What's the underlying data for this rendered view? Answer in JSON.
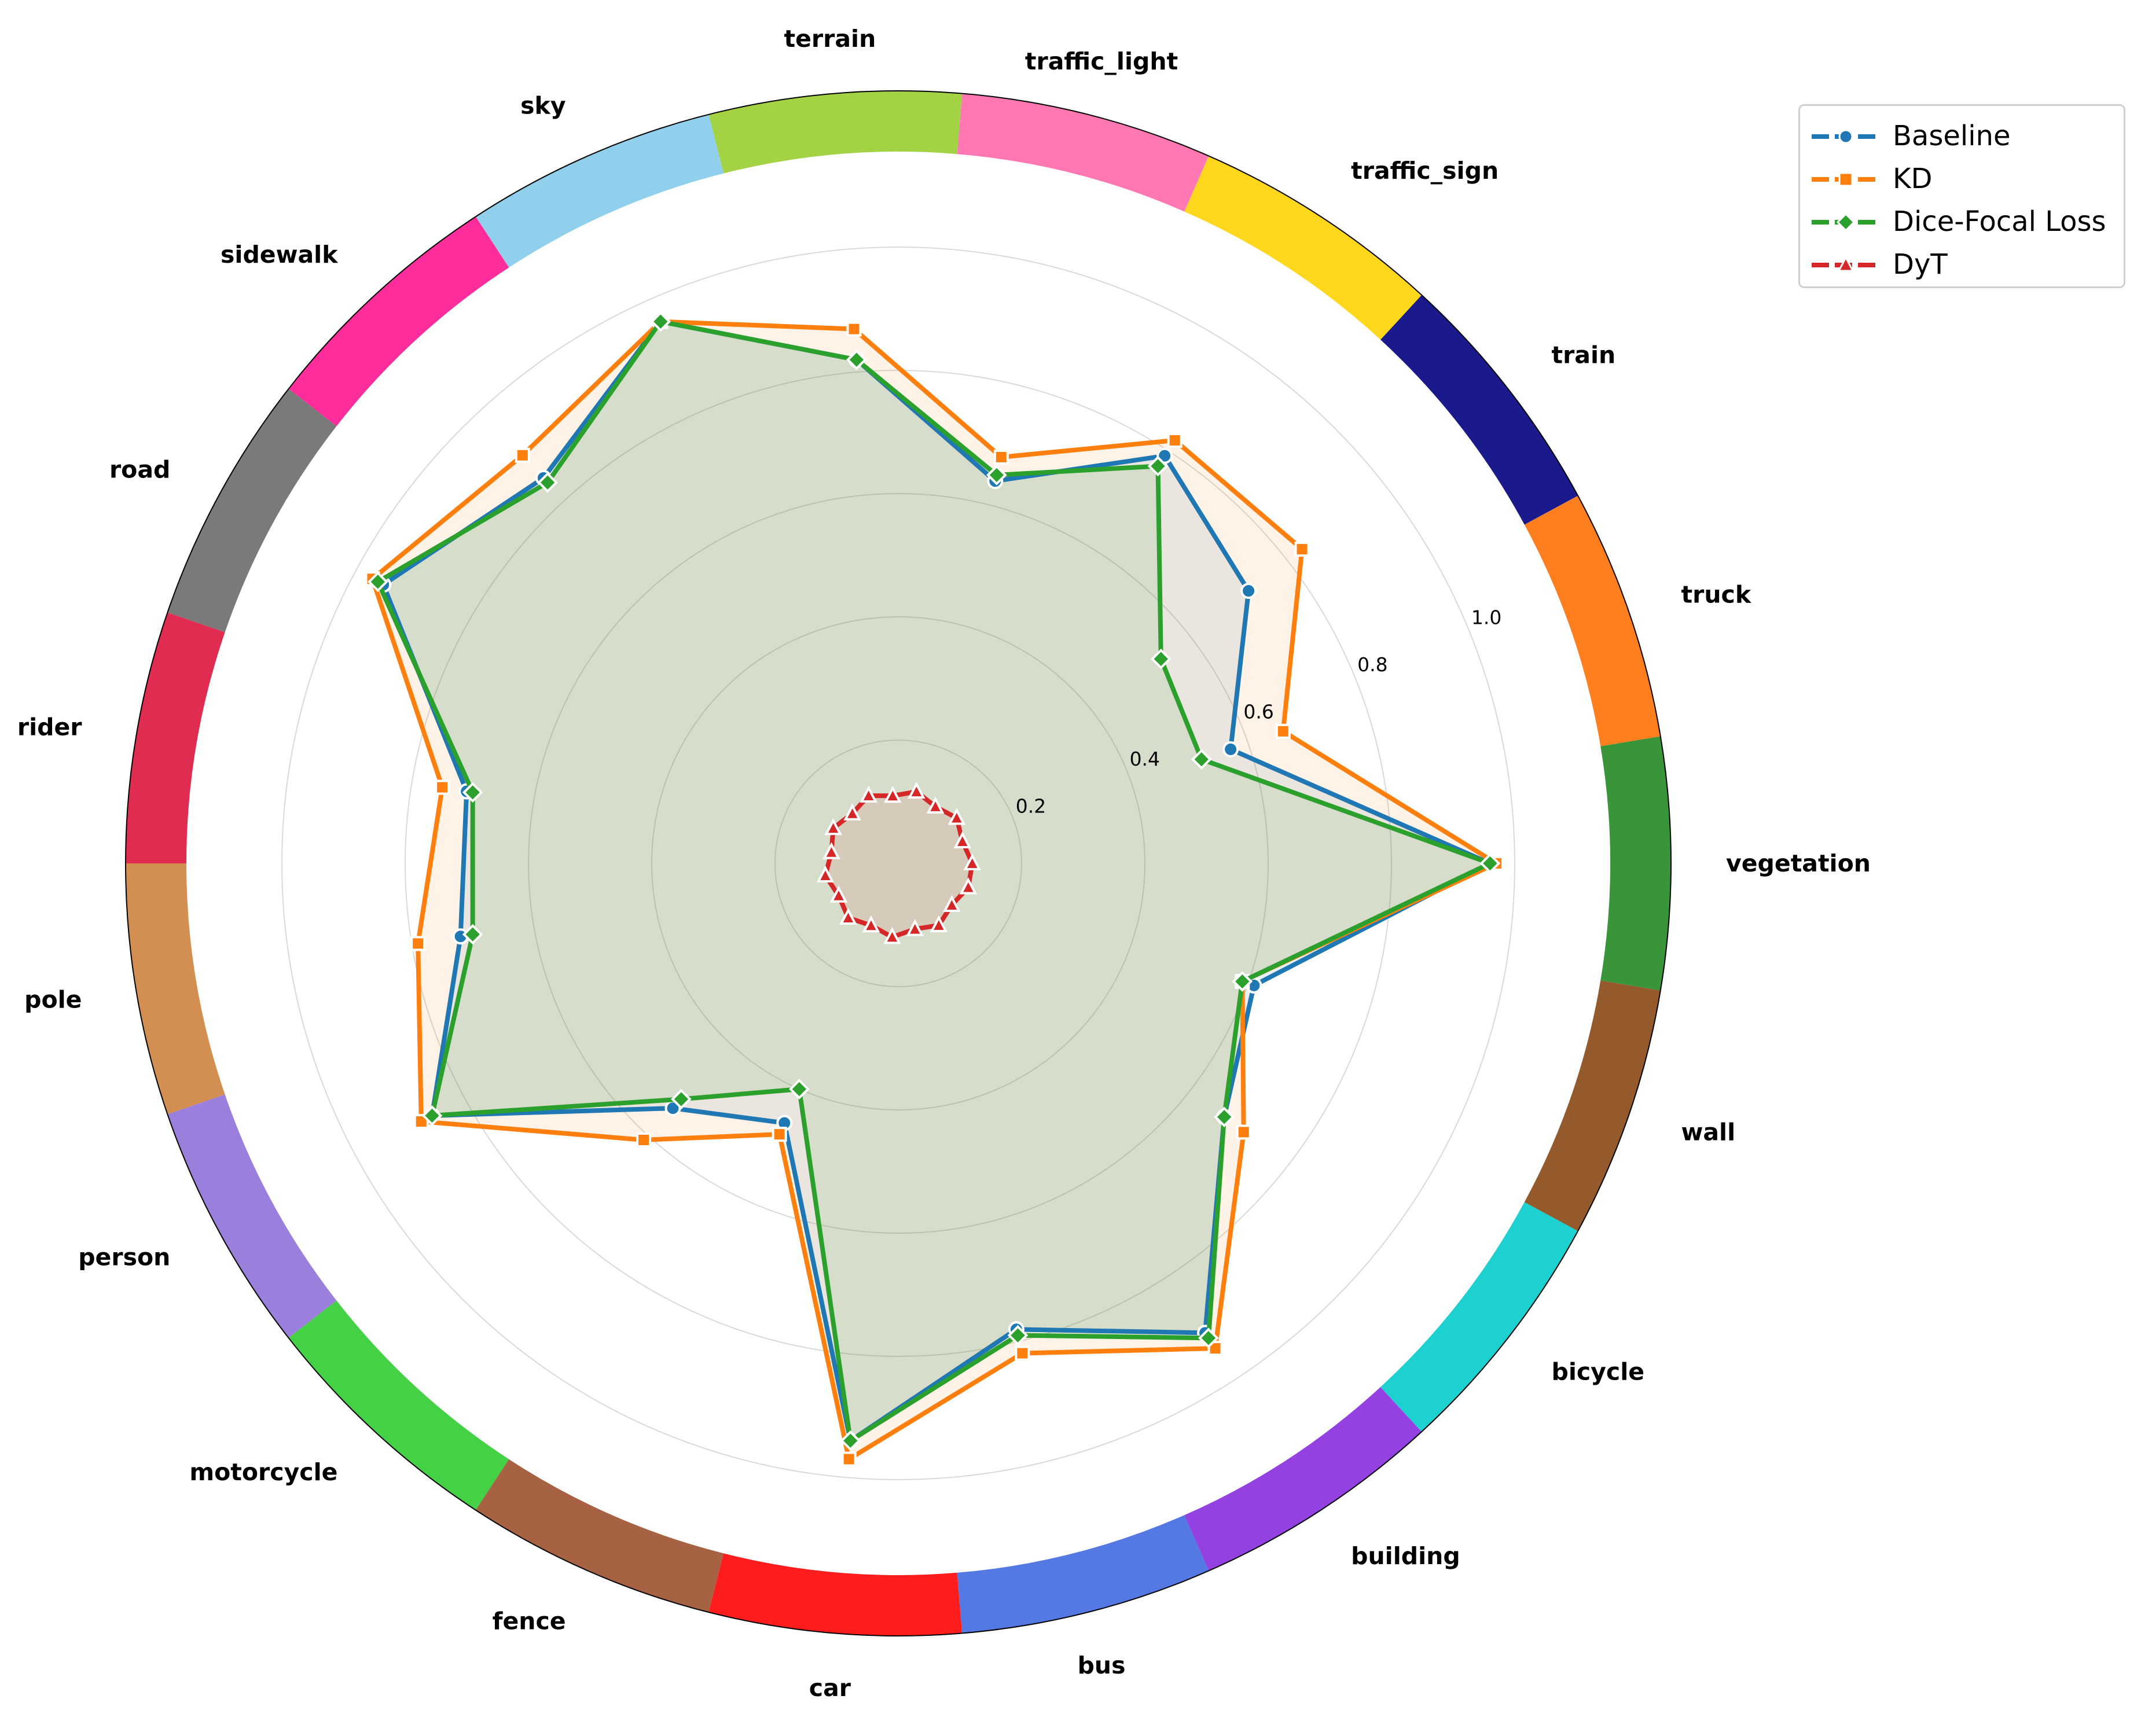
{
  "chart_data": {
    "type": "radar",
    "categories": [
      "vegetation",
      "truck",
      "train",
      "traffic_sign",
      "traffic_light",
      "terrain",
      "sky",
      "sidewalk",
      "road",
      "rider",
      "pole",
      "person",
      "motorcycle",
      "fence",
      "car",
      "bus",
      "building",
      "bicycle",
      "wall"
    ],
    "ring_colors": [
      "#3a953a",
      "#ff7f1e",
      "#1a1a8c",
      "#ffd81e",
      "#ff78b4",
      "#a4d245",
      "#90d0ec",
      "#ff2d9c",
      "#7a7a7a",
      "#e02c50",
      "#d38f52",
      "#9b7fdc",
      "#45d145",
      "#a76243",
      "#ff1c1c",
      "#5479e2",
      "#9441e2",
      "#1dd1d1",
      "#945a2c"
    ],
    "rlim": [
      0,
      1.0
    ],
    "r_ticks": [
      "0.2",
      "0.4",
      "0.6",
      "0.8",
      "1.0"
    ],
    "r_tick_values": [
      0.2,
      0.4,
      0.6,
      0.8,
      1.0
    ],
    "series": [
      {
        "name": "Baseline",
        "color": "#1f77b4",
        "marker": "circle",
        "values": [
          0.96,
          0.57,
          0.72,
          0.79,
          0.64,
          0.82,
          0.96,
          0.85,
          0.95,
          0.71,
          0.72,
          0.86,
          0.54,
          0.46,
          0.94,
          0.78,
          0.91,
          0.67,
          0.61
        ]
      },
      {
        "name": "KD",
        "color": "#ff7f0e",
        "marker": "square",
        "values": [
          0.97,
          0.66,
          0.83,
          0.82,
          0.68,
          0.87,
          0.96,
          0.9,
          0.97,
          0.75,
          0.79,
          0.88,
          0.61,
          0.48,
          0.97,
          0.82,
          0.94,
          0.71,
          0.59
        ]
      },
      {
        "name": "Dice-Focal Loss",
        "color": "#2ca02c",
        "marker": "diamond",
        "values": [
          0.96,
          0.52,
          0.54,
          0.77,
          0.65,
          0.82,
          0.96,
          0.84,
          0.96,
          0.7,
          0.7,
          0.86,
          0.52,
          0.4,
          0.94,
          0.79,
          0.92,
          0.67,
          0.59
        ]
      },
      {
        "name": "DyT",
        "color": "#d62728",
        "marker": "triangle",
        "values": [
          0.12,
          0.11,
          0.12,
          0.11,
          0.12,
          0.11,
          0.12,
          0.11,
          0.12,
          0.11,
          0.12,
          0.11,
          0.12,
          0.11,
          0.12,
          0.11,
          0.12,
          0.11,
          0.12
        ]
      }
    ],
    "legend_position": "top-right",
    "grid": true
  }
}
